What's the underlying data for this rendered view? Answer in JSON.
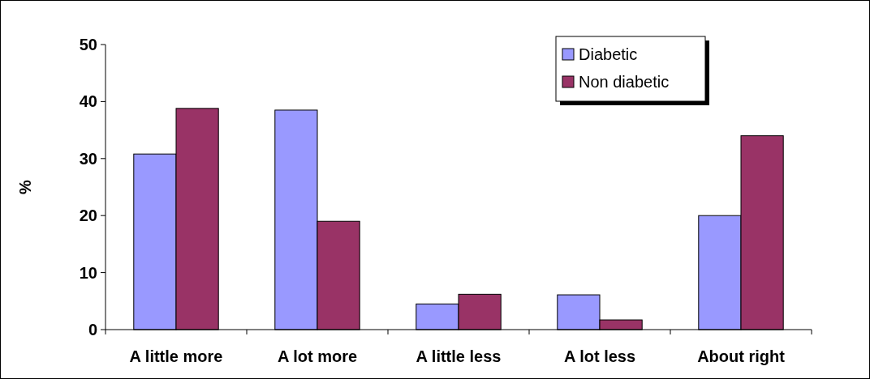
{
  "chart_data": {
    "type": "bar",
    "ylabel": "%",
    "categories": [
      "A little more",
      "A lot more",
      "A little less",
      "A lot less",
      "About right"
    ],
    "series": [
      {
        "name": "Diabetic",
        "color": "#9999ff",
        "values": [
          30.8,
          38.5,
          4.5,
          6.1,
          20.0
        ]
      },
      {
        "name": "Non diabetic",
        "color": "#993366",
        "values": [
          38.8,
          19.0,
          6.2,
          1.7,
          34.0
        ]
      }
    ],
    "ylim": [
      0,
      50
    ],
    "yticks": [
      0,
      10,
      20,
      30,
      40,
      50
    ],
    "legend": "top right"
  }
}
